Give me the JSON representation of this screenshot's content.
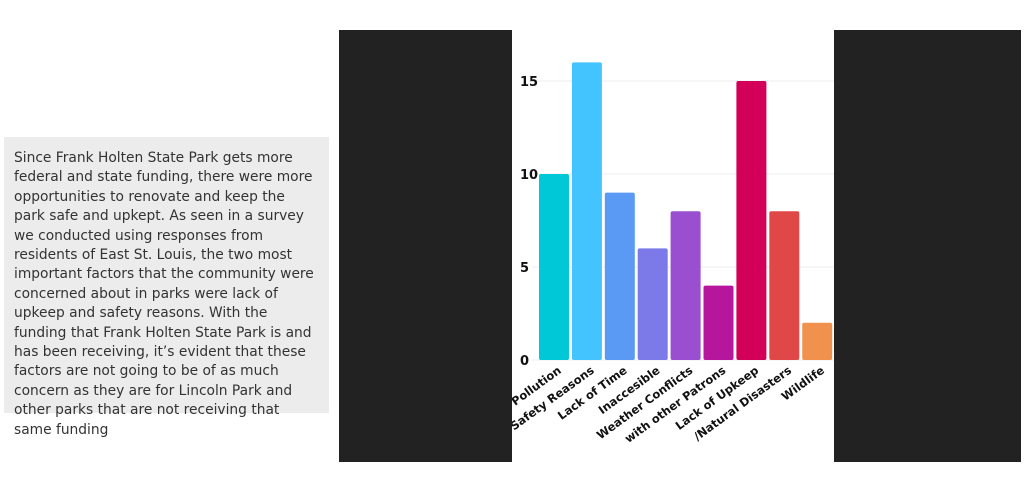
{
  "description": {
    "paragraph": "Since Frank Holten State Park gets more federal and state funding, there were more opportunities to renovate and keep the park safe and upkept. As seen in a survey we conducted using responses from residents of East St. Louis, the two most important factors that the community were concerned about in parks were lack of upkeep and safety reasons. With the funding that Frank Holten State Park is and has been receiving, it’s evident that these factors are not going to be of as much concern as they are for Lincoln Park and other parks that are not receiving that same funding"
  },
  "chart_data": {
    "type": "bar",
    "categories": [
      "Pollution",
      "Safety Reasons",
      "Lack of Time",
      "Inaccesible",
      "Weather Conflicts",
      "with other Patrons",
      "Lack of Upkeep",
      "/Natural Disasters",
      "Wildlife"
    ],
    "values": [
      10,
      16,
      9,
      6,
      8,
      4,
      15,
      8,
      2
    ],
    "colors": [
      "#00c8d7",
      "#44c4ff",
      "#5a9af5",
      "#7b7ae8",
      "#9a4fd0",
      "#b6169c",
      "#d20059",
      "#e04848",
      "#f0914e"
    ],
    "yticks": [
      0,
      5,
      10,
      15
    ],
    "ylim": [
      0,
      16.5
    ],
    "grid": true
  }
}
